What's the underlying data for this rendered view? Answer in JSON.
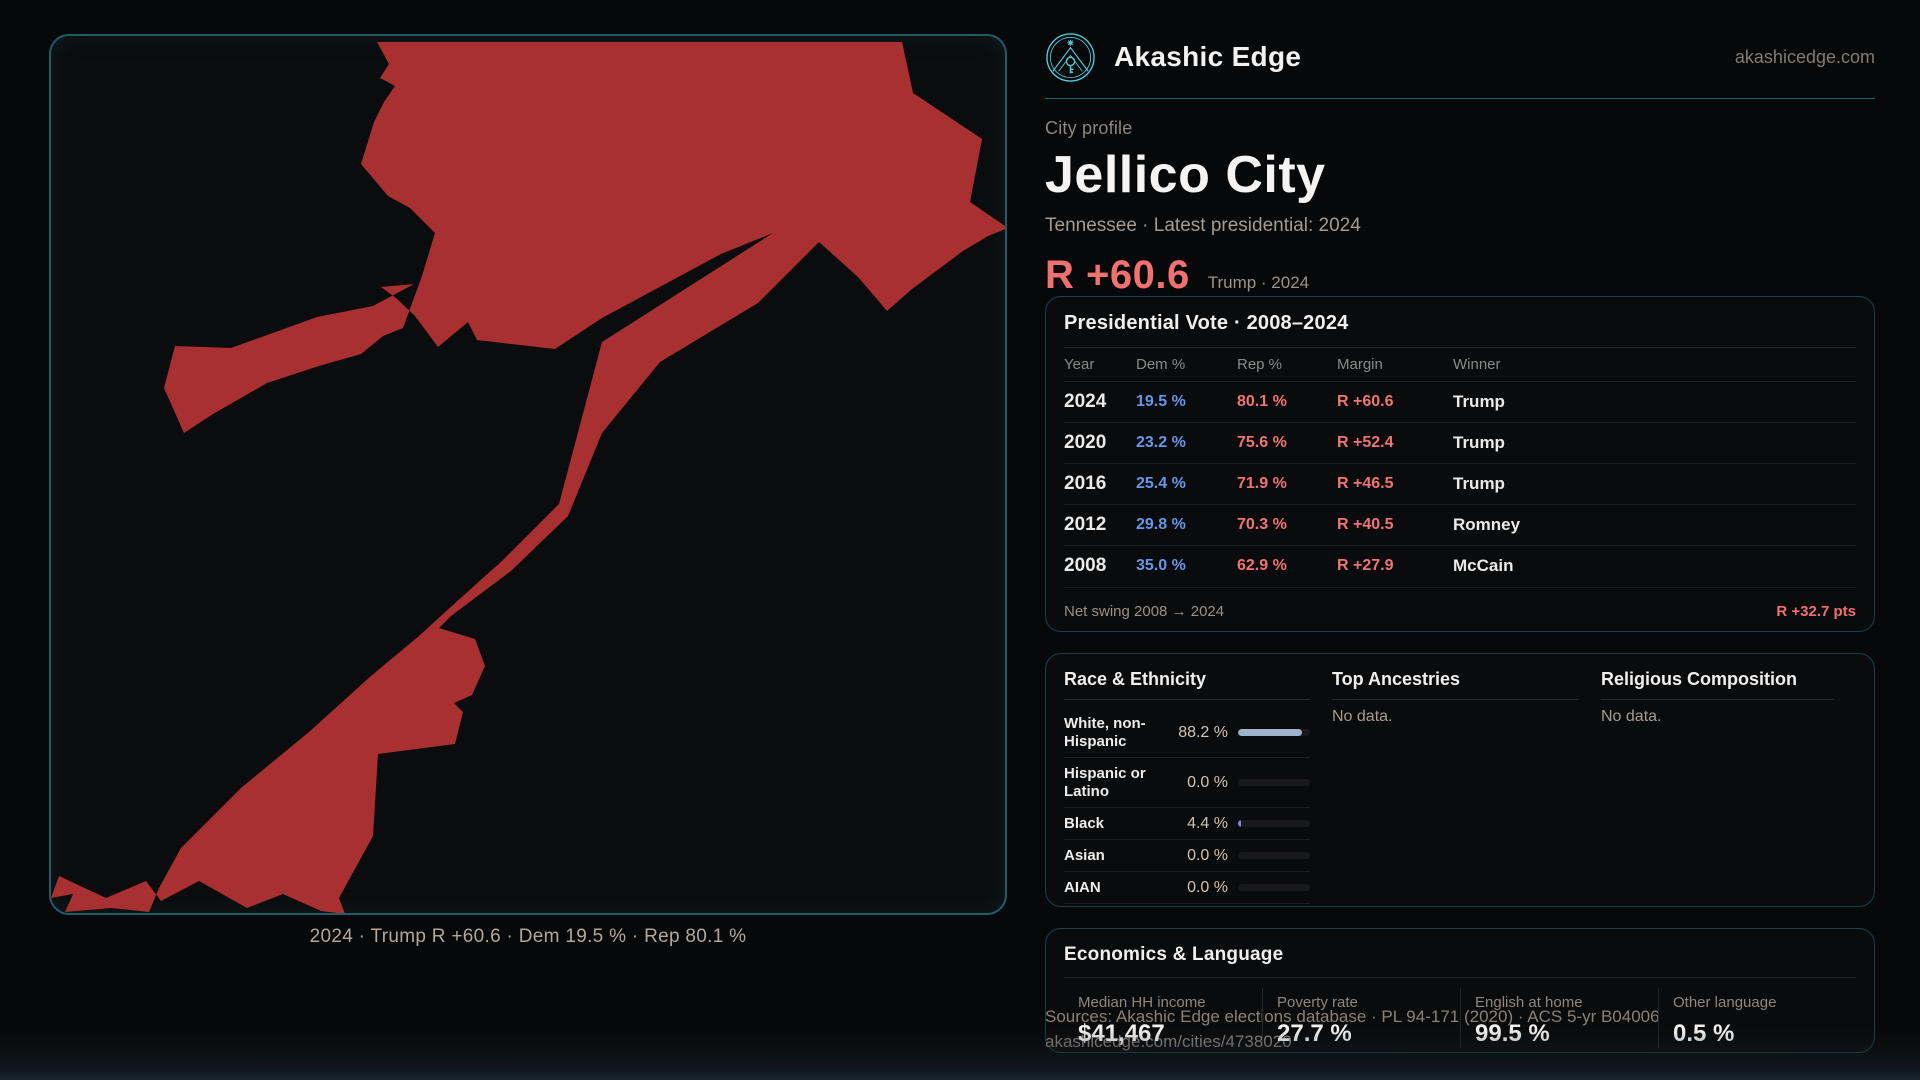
{
  "brand": {
    "name": "Akashic Edge",
    "domain": "akashicedge.com"
  },
  "profile": {
    "kicker": "City profile",
    "title": "Jellico City",
    "subtitle": "Tennessee · Latest presidential: 2024",
    "margin_headline": "R +60.6",
    "margin_context": "Trump · 2024"
  },
  "map": {
    "caption": "2024 · Trump R +60.6 · Dem 19.5 % · Rep 80.1 %",
    "fill_color": "#a93030"
  },
  "vote_panel": {
    "title": "Presidential Vote · 2008–2024",
    "columns": [
      "Year",
      "Dem %",
      "Rep %",
      "Margin",
      "Winner"
    ],
    "rows": [
      {
        "year": "2024",
        "dem": "19.5 %",
        "rep": "80.1 %",
        "margin": "R +60.6",
        "winner": "Trump"
      },
      {
        "year": "2020",
        "dem": "23.2 %",
        "rep": "75.6 %",
        "margin": "R +52.4",
        "winner": "Trump"
      },
      {
        "year": "2016",
        "dem": "25.4 %",
        "rep": "71.9 %",
        "margin": "R +46.5",
        "winner": "Trump"
      },
      {
        "year": "2012",
        "dem": "29.8 %",
        "rep": "70.3 %",
        "margin": "R +40.5",
        "winner": "Romney"
      },
      {
        "year": "2008",
        "dem": "35.0 %",
        "rep": "62.9 %",
        "margin": "R +27.9",
        "winner": "McCain"
      }
    ],
    "net_swing_label": "Net swing 2008 → 2024",
    "net_swing_value": "R +32.7 pts"
  },
  "demographics": {
    "race": {
      "title": "Race & Ethnicity",
      "rows": [
        {
          "label": "White, non-Hispanic",
          "value": "88.2 %",
          "pct": 88.2,
          "color": "#9fb2cc"
        },
        {
          "label": "Hispanic or Latino",
          "value": "0.0 %",
          "pct": 0,
          "color": "#9fb2cc"
        },
        {
          "label": "Black",
          "value": "4.4 %",
          "pct": 4.4,
          "color": "#8b7ae8"
        },
        {
          "label": "Asian",
          "value": "0.0 %",
          "pct": 0,
          "color": "#9fb2cc"
        },
        {
          "label": "AIAN",
          "value": "0.0 %",
          "pct": 0,
          "color": "#9fb2cc"
        }
      ]
    },
    "ancestries": {
      "title": "Top Ancestries",
      "empty": "No data."
    },
    "religion": {
      "title": "Religious Composition",
      "empty": "No data."
    }
  },
  "economics": {
    "title": "Economics & Language",
    "stats": [
      {
        "label": "Median HH income",
        "value": "$41,467"
      },
      {
        "label": "Poverty rate",
        "value": "27.7 %"
      },
      {
        "label": "English at home",
        "value": "99.5 %"
      },
      {
        "label": "Other language",
        "value": "0.5 %"
      }
    ]
  },
  "footer": {
    "sources": "Sources: Akashic Edge elections database · PL 94-171 (2020) · ACS 5-yr B04006",
    "permalink": "akashicedge.com/cities/4738020"
  },
  "colors": {
    "accent_teal": "#4ecbdd",
    "map_red": "#a93030",
    "dem_blue": "#6697ea",
    "rep_salmon": "#ef7474"
  }
}
